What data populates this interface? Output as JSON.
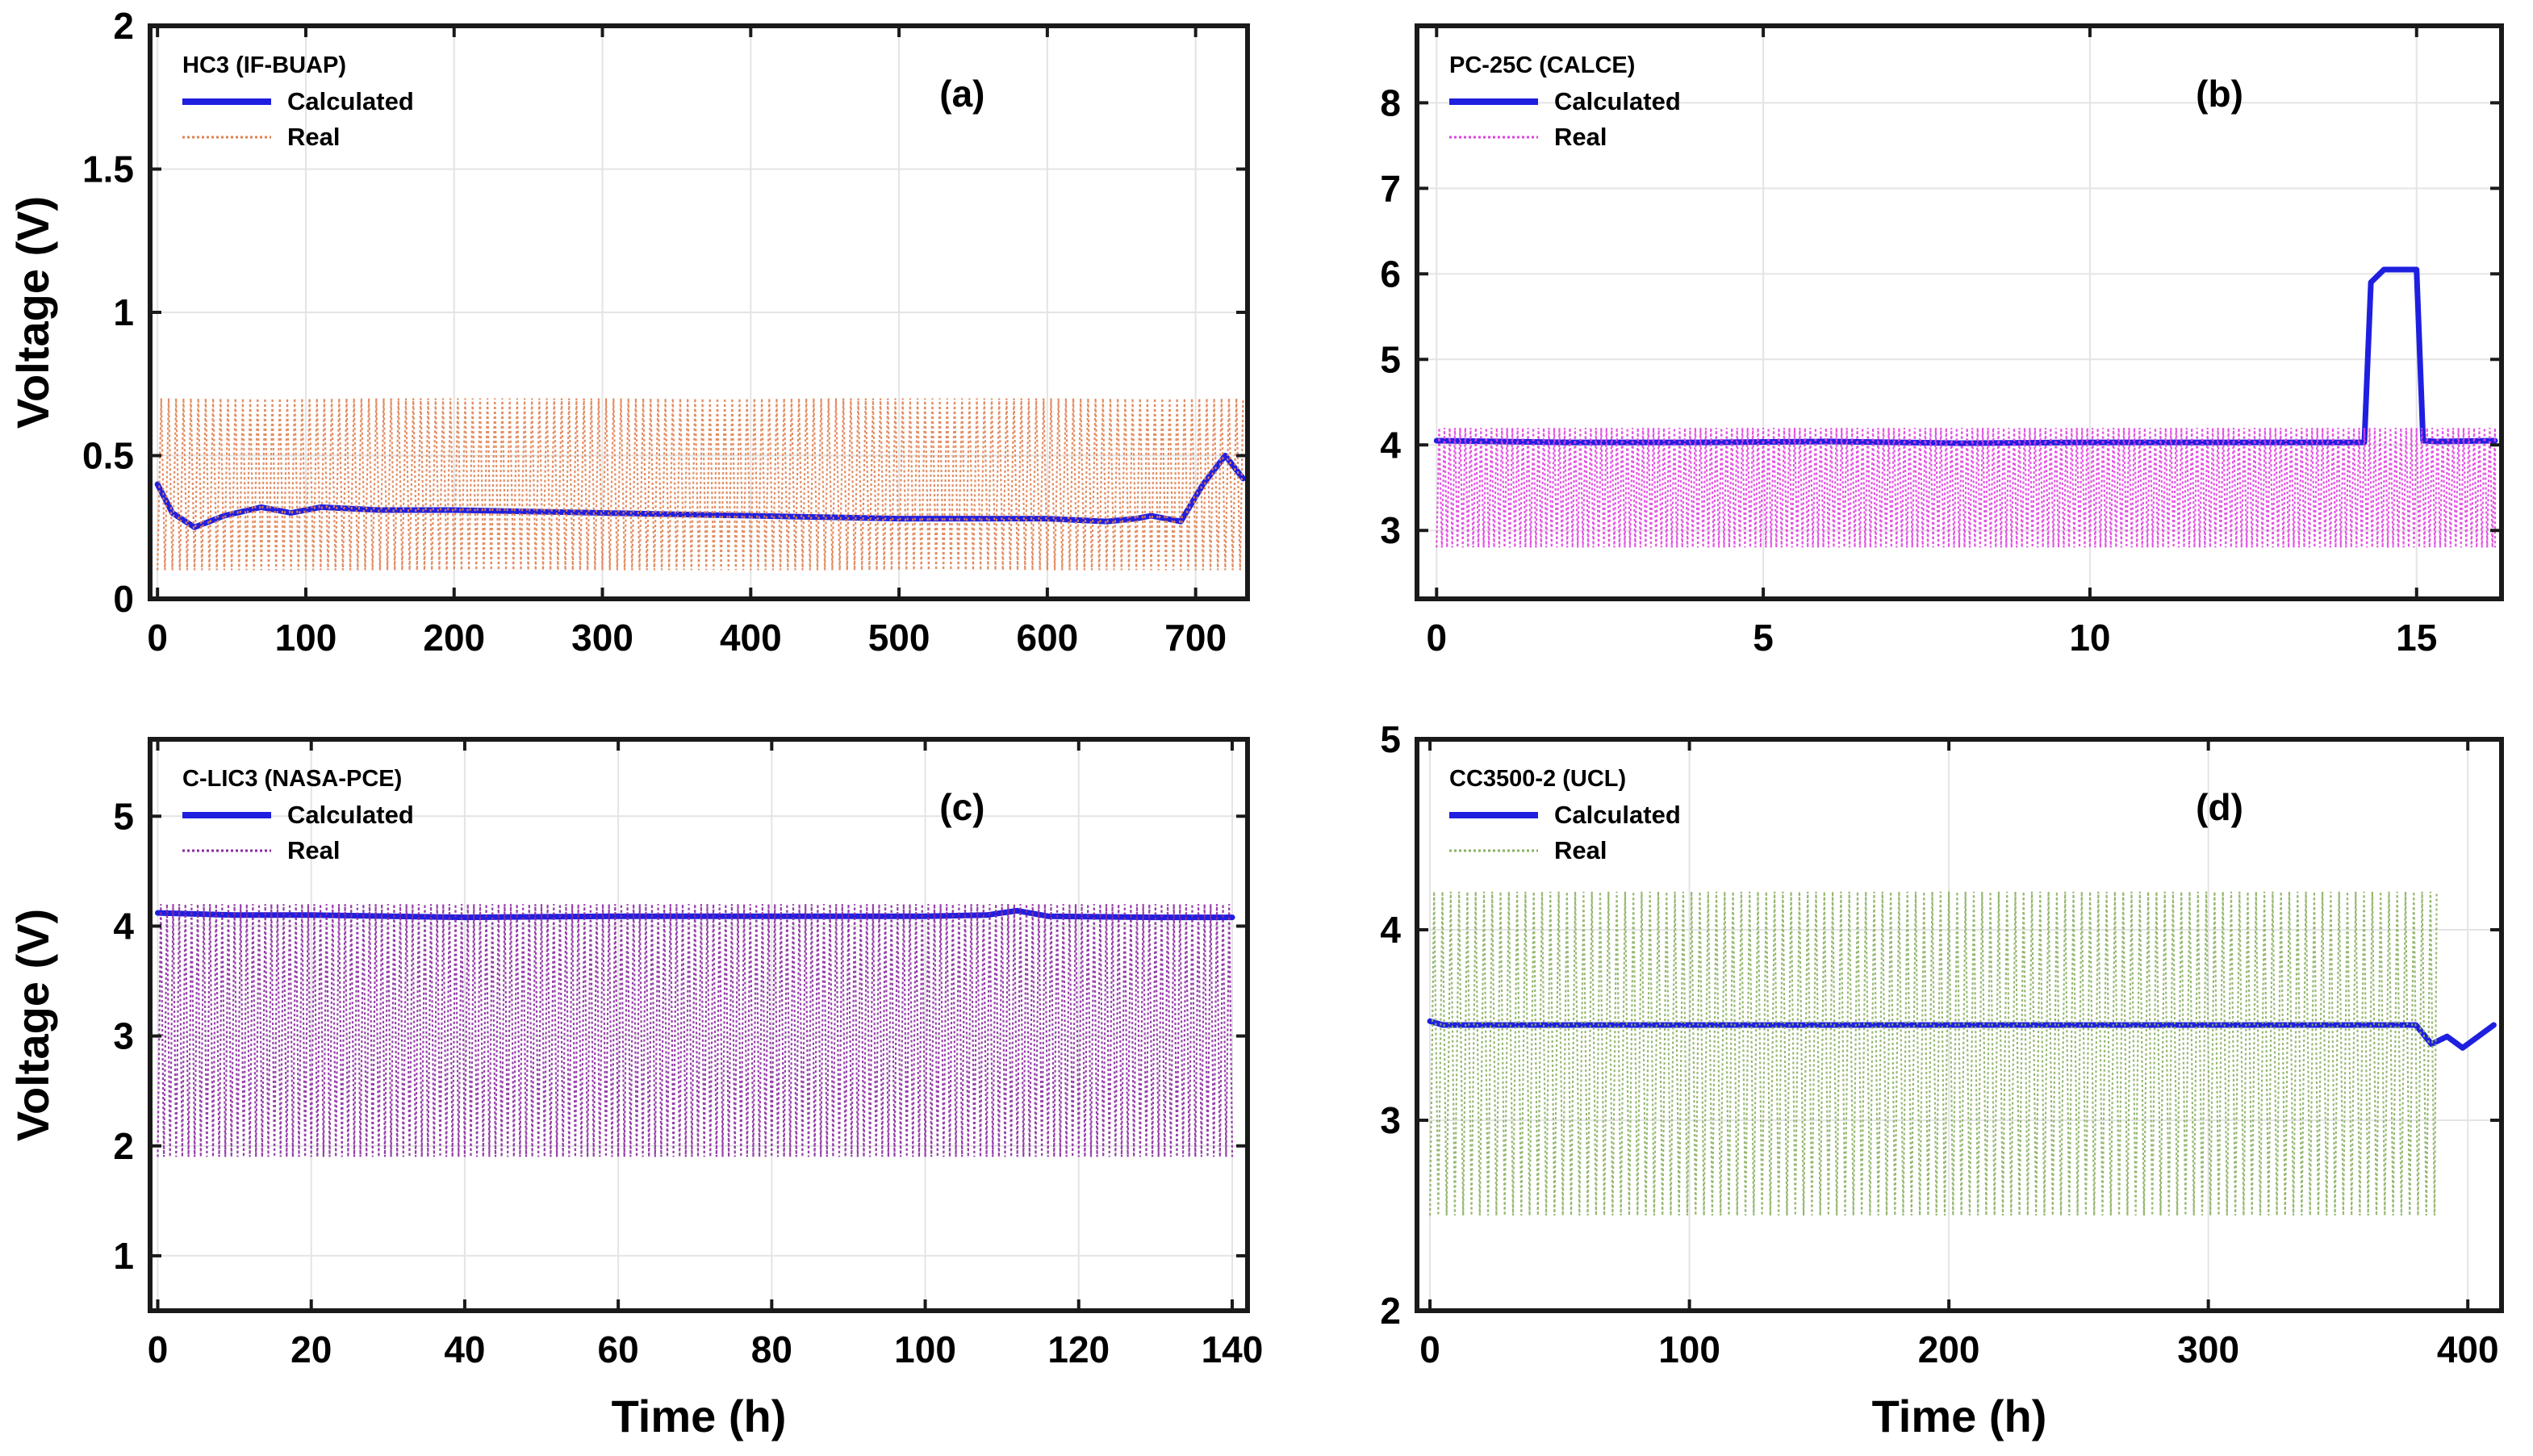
{
  "chart_data": [
    {
      "type": "line",
      "panel_label": "(a)",
      "title": "HC3 (IF-BUAP)",
      "xlabel": "",
      "ylabel": "Voltage (V)",
      "xlim": [
        -5,
        735
      ],
      "ylim": [
        0,
        2
      ],
      "xticks": [
        0,
        100,
        200,
        300,
        400,
        500,
        600,
        700
      ],
      "yticks": [
        0,
        0.5,
        1,
        1.5,
        2
      ],
      "ytick_labels": [
        "0",
        "0.5",
        "1",
        "1.5",
        "2"
      ],
      "grid": true,
      "legend_location": "top-left",
      "series": [
        {
          "name": "Calculated",
          "style": "solid",
          "color": "#1f1fe0",
          "x": [
            0,
            10,
            25,
            45,
            70,
            90,
            110,
            150,
            200,
            300,
            400,
            500,
            600,
            640,
            660,
            670,
            690,
            705,
            720,
            732
          ],
          "y": [
            0.4,
            0.3,
            0.25,
            0.29,
            0.32,
            0.3,
            0.32,
            0.31,
            0.31,
            0.3,
            0.29,
            0.28,
            0.28,
            0.27,
            0.28,
            0.29,
            0.27,
            0.4,
            0.5,
            0.42
          ]
        },
        {
          "name": "Real",
          "style": "dotted",
          "color": "#e08050",
          "period": 5,
          "y_high": 0.7,
          "y_low": 0.1,
          "x_range": [
            0,
            732
          ]
        }
      ]
    },
    {
      "type": "line",
      "panel_label": "(b)",
      "title": "PC-25C (CALCE)",
      "xlabel": "",
      "ylabel": "",
      "xlim": [
        -0.3,
        16.3
      ],
      "ylim": [
        2.2,
        8.9
      ],
      "xticks": [
        0,
        5,
        10,
        15
      ],
      "yticks": [
        3,
        4,
        5,
        6,
        7,
        8
      ],
      "ytick_labels": [
        "3",
        "4",
        "5",
        "6",
        "7",
        "8"
      ],
      "grid": true,
      "legend_location": "top-left",
      "series": [
        {
          "name": "Calculated",
          "style": "solid",
          "color": "#1f1fe0",
          "x": [
            0,
            2,
            4,
            6,
            8,
            10,
            12,
            14.2,
            14.3,
            14.5,
            15.0,
            15.1,
            15.3,
            16.2
          ],
          "y": [
            4.05,
            4.03,
            4.03,
            4.04,
            4.02,
            4.03,
            4.03,
            4.03,
            5.9,
            6.05,
            6.05,
            4.05,
            4.04,
            4.05
          ]
        },
        {
          "name": "Real",
          "style": "dotted",
          "color": "#e040e0",
          "period": 0.08,
          "y_high": 4.2,
          "y_low": 2.8,
          "x_range": [
            0,
            16.2
          ]
        }
      ]
    },
    {
      "type": "line",
      "panel_label": "(c)",
      "title": "C-LIC3 (NASA-PCE)",
      "xlabel": "Time (h)",
      "ylabel": "Voltage (V)",
      "xlim": [
        -1,
        142
      ],
      "ylim": [
        0.5,
        5.7
      ],
      "xticks": [
        0,
        20,
        40,
        60,
        80,
        100,
        120,
        140
      ],
      "yticks": [
        1,
        2,
        3,
        4,
        5
      ],
      "ytick_labels": [
        "1",
        "2",
        "3",
        "4",
        "5"
      ],
      "grid": true,
      "legend_location": "top-left",
      "series": [
        {
          "name": "Calculated",
          "style": "solid",
          "color": "#1f1fe0",
          "x": [
            0,
            10,
            20,
            40,
            60,
            80,
            100,
            108,
            112,
            116,
            130,
            140
          ],
          "y": [
            4.12,
            4.1,
            4.1,
            4.08,
            4.09,
            4.09,
            4.09,
            4.1,
            4.14,
            4.09,
            4.08,
            4.08
          ]
        },
        {
          "name": "Real",
          "style": "dotted",
          "color": "#8a2aa0",
          "period": 0.8,
          "y_high": 4.2,
          "y_low": 1.9,
          "x_range": [
            0,
            140
          ]
        }
      ]
    },
    {
      "type": "line",
      "panel_label": "(d)",
      "title": "CC3500-2 (UCL)",
      "xlabel": "Time (h)",
      "ylabel": "",
      "xlim": [
        -5,
        413
      ],
      "ylim": [
        2,
        5
      ],
      "xticks": [
        0,
        100,
        200,
        300,
        400
      ],
      "yticks": [
        2,
        3,
        4,
        5
      ],
      "ytick_labels": [
        "2",
        "3",
        "4",
        "5"
      ],
      "grid": true,
      "legend_location": "top-left",
      "series": [
        {
          "name": "Calculated",
          "style": "solid",
          "color": "#1f1fe0",
          "x": [
            0,
            5,
            50,
            100,
            200,
            300,
            370,
            380,
            386,
            392,
            398,
            404,
            410
          ],
          "y": [
            3.52,
            3.5,
            3.5,
            3.5,
            3.5,
            3.5,
            3.5,
            3.5,
            3.4,
            3.44,
            3.38,
            3.44,
            3.5
          ]
        },
        {
          "name": "Real",
          "style": "dotted",
          "color": "#8ab060",
          "period": 3.2,
          "y_high": 4.2,
          "y_low": 2.5,
          "x_range": [
            0,
            388
          ]
        }
      ]
    }
  ]
}
